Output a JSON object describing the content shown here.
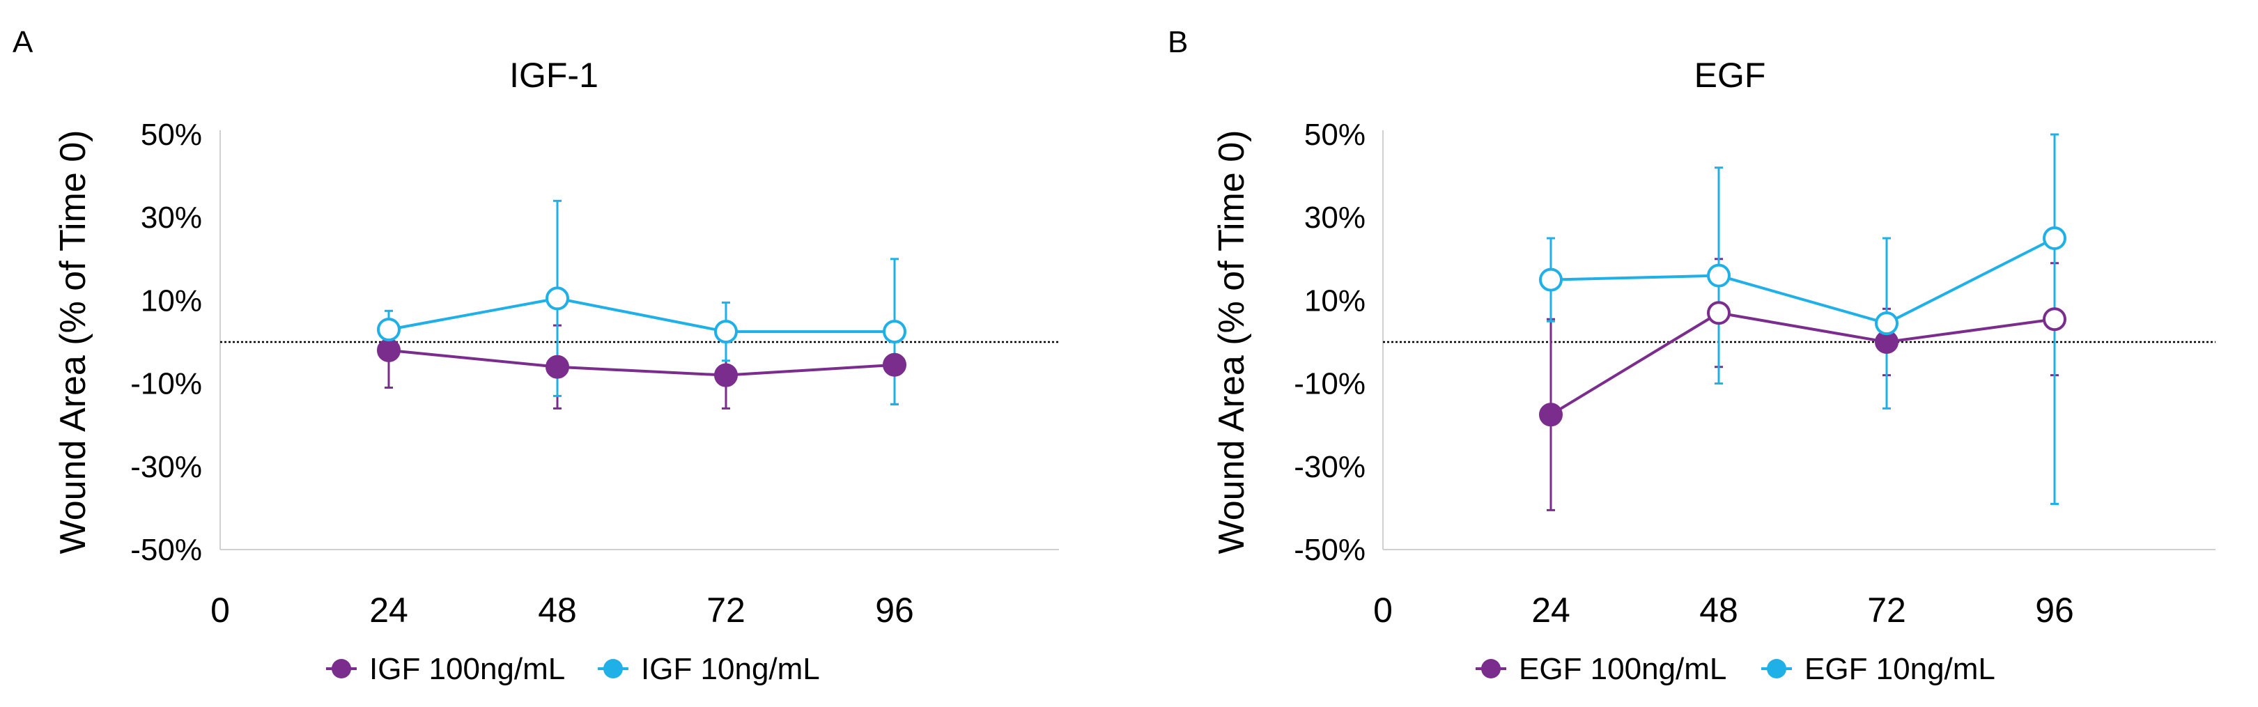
{
  "figure": {
    "panels": [
      "A",
      "B"
    ]
  },
  "chart_data": [
    {
      "panel_label": "A",
      "type": "line",
      "title": "IGF-1",
      "xlabel": "",
      "ylabel": "Wound Area (% of Time 0)",
      "xlim": [
        0,
        120
      ],
      "ylim": [
        -50,
        50
      ],
      "x_ticks": [
        0,
        24,
        48,
        72,
        96
      ],
      "x_tick_labels": [
        "0",
        "24",
        "48",
        "72",
        "96"
      ],
      "y_ticks": [
        -50,
        -30,
        -10,
        10,
        30,
        50
      ],
      "y_tick_labels": [
        "-50%",
        "-30%",
        "-10%",
        "10%",
        "30%",
        "50%"
      ],
      "reference_line": 0,
      "grid": false,
      "legend_position": "bottom",
      "series": [
        {
          "name": "IGF 100ng/mL",
          "color": "#7B2D8E",
          "x": [
            24,
            48,
            72,
            96
          ],
          "values": [
            -2,
            -6,
            -8,
            -5.5
          ],
          "error_upper": [
            2,
            10,
            8,
            9
          ],
          "error_lower": [
            9,
            10,
            8,
            9.5
          ],
          "markers": [
            "filled",
            "filled",
            "filled",
            "filled"
          ]
        },
        {
          "name": "IGF 10ng/mL",
          "color": "#1FB0E8",
          "x": [
            24,
            48,
            72,
            96
          ],
          "values": [
            3,
            10.5,
            2.5,
            2.5
          ],
          "error_upper": [
            4.5,
            23.5,
            7,
            17.5
          ],
          "error_lower": [
            4.5,
            23.5,
            7,
            17.5
          ],
          "markers": [
            "open",
            "open",
            "open",
            "open"
          ]
        }
      ]
    },
    {
      "panel_label": "B",
      "type": "line",
      "title": "EGF",
      "xlabel": "",
      "ylabel": "Wound Area (% of Time 0)",
      "xlim": [
        0,
        120
      ],
      "ylim": [
        -50,
        50
      ],
      "x_ticks": [
        0,
        24,
        48,
        72,
        96
      ],
      "x_tick_labels": [
        "0",
        "24",
        "48",
        "72",
        "96"
      ],
      "y_ticks": [
        -50,
        -30,
        -10,
        10,
        30,
        50
      ],
      "y_tick_labels": [
        "-50%",
        "-30%",
        "-10%",
        "10%",
        "30%",
        "50%"
      ],
      "reference_line": 0,
      "grid": false,
      "legend_position": "bottom",
      "series": [
        {
          "name": "EGF 100ng/mL",
          "color": "#7B2D8E",
          "x": [
            24,
            48,
            72,
            96
          ],
          "values": [
            -17.5,
            7,
            0,
            5.5
          ],
          "error_upper": [
            23,
            13,
            8,
            13.5
          ],
          "error_lower": [
            23,
            13,
            8,
            13.5
          ],
          "markers": [
            "filled",
            "open",
            "filled",
            "open"
          ]
        },
        {
          "name": "EGF 10ng/mL",
          "color": "#1FB0E8",
          "x": [
            24,
            48,
            72,
            96
          ],
          "values": [
            15,
            16,
            4.5,
            25
          ],
          "error_upper": [
            10,
            26,
            20.5,
            25
          ],
          "error_lower": [
            10,
            26,
            20.5,
            64
          ],
          "markers": [
            "open",
            "open",
            "open",
            "open"
          ]
        }
      ]
    }
  ]
}
